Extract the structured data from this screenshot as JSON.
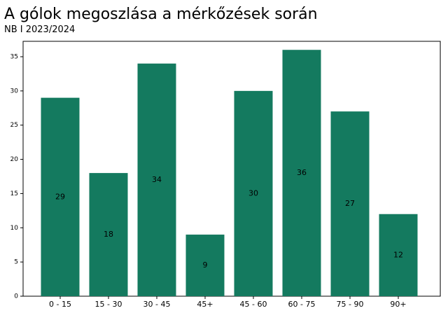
{
  "chart_data": {
    "type": "bar",
    "title": "A gólok megoszlása a mérkőzések során",
    "subtitle": "NB I 2023/2024",
    "categories": [
      "0 - 15",
      "15 - 30",
      "30 - 45",
      "45+",
      "45 - 60",
      "60 - 75",
      "75 - 90",
      "90+"
    ],
    "values": [
      29,
      18,
      34,
      9,
      30,
      36,
      27,
      12
    ],
    "color": "#147a5f",
    "ylim": [
      0,
      37.25
    ],
    "yticks": [
      0,
      5,
      10,
      15,
      20,
      25,
      30,
      35
    ],
    "grid": false
  }
}
